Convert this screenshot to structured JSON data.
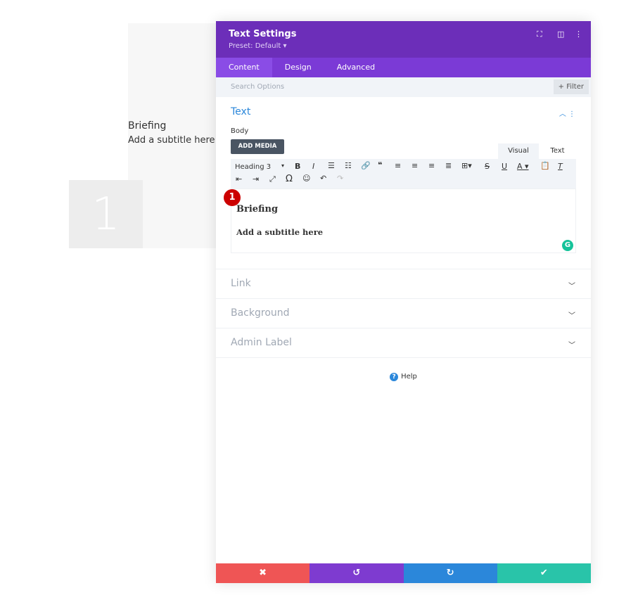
{
  "preview": {
    "title": "Briefing",
    "subtitle": "Add a subtitle here",
    "number": "1"
  },
  "panel": {
    "title": "Text Settings",
    "preset": "Preset: Default ▾",
    "tabs": [
      "Content",
      "Design",
      "Advanced"
    ],
    "search_placeholder": "Search Options",
    "filter_label": "+ Filter",
    "text_section": {
      "title": "Text",
      "body_label": "Body",
      "add_media": "ADD MEDIA",
      "visual_tab": "Visual",
      "text_tab": "Text",
      "heading_select": "Heading 3",
      "content_title": "Briefing",
      "content_subtitle": "Add a subtitle here",
      "step_badge": "1"
    },
    "sections": [
      "Link",
      "Background",
      "Admin Label"
    ],
    "help": "Help"
  },
  "colors": {
    "header": "#6c2eb9",
    "tabs": "#7b3ad6",
    "cancel": "#ef5555",
    "undo": "#7e3bd0",
    "redo": "#2b87da",
    "save": "#29c4a9"
  }
}
